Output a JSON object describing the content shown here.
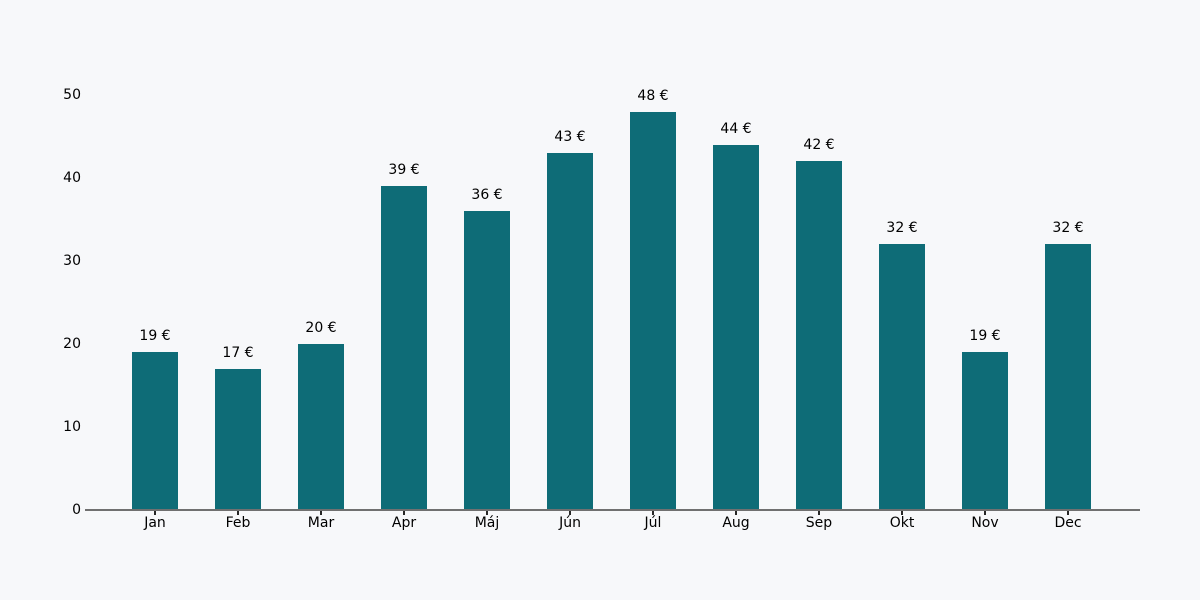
{
  "chart_data": {
    "type": "bar",
    "title": "",
    "xlabel": "",
    "ylabel": "",
    "categories": [
      "Jan",
      "Feb",
      "Mar",
      "Apr",
      "Máj",
      "Jún",
      "Júl",
      "Aug",
      "Sep",
      "Okt",
      "Nov",
      "Dec"
    ],
    "values": [
      19,
      17,
      20,
      39,
      36,
      43,
      48,
      44,
      42,
      32,
      19,
      32
    ],
    "value_labels": [
      "19 €",
      "17 €",
      "20 €",
      "39 €",
      "36 €",
      "43 €",
      "48 €",
      "44 €",
      "42 €",
      "32 €",
      "19 €",
      "32 €"
    ],
    "currency": "€",
    "ylim": [
      0,
      50
    ],
    "yticks": [
      0,
      10,
      20,
      30,
      40,
      50
    ],
    "grid": false,
    "legend": false,
    "colors": {
      "bar": "#0e6c77",
      "background": "#f7f8fa",
      "axis_line": "#707070",
      "tick_mark": "#262626",
      "text": "#000000"
    }
  }
}
